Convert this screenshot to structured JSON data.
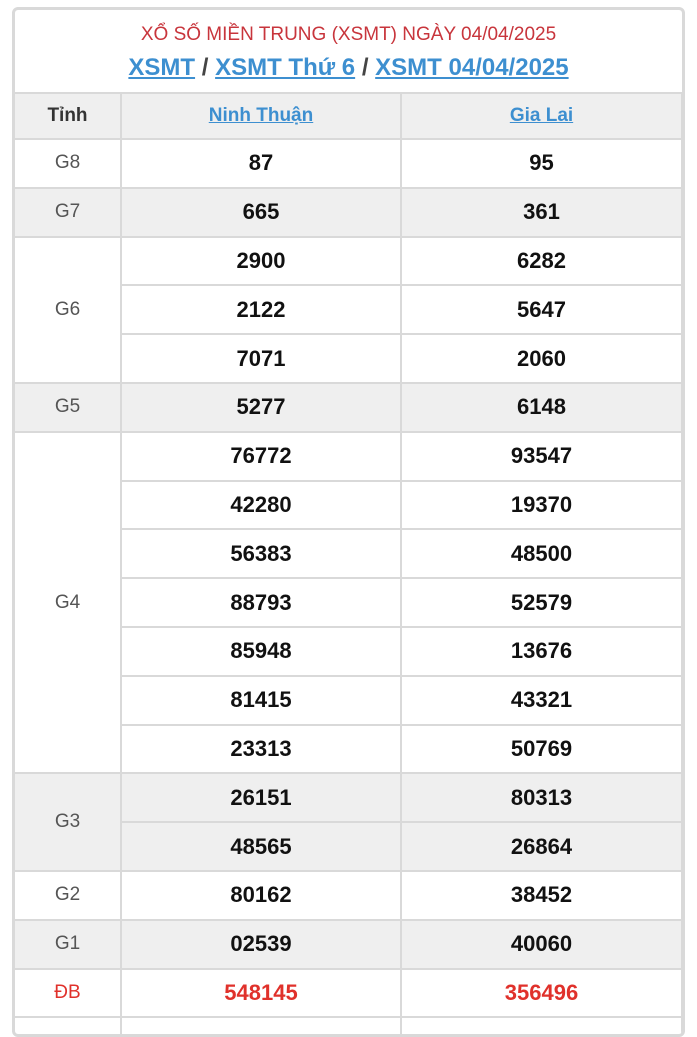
{
  "header": {
    "title": "XỔ SỐ MIỀN TRUNG (XSMT) NGÀY 04/04/2025",
    "breadcrumb": [
      "XSMT",
      "XSMT Thứ 6",
      "XSMT 04/04/2025"
    ],
    "separator": "/"
  },
  "table": {
    "col_label": "Tỉnh",
    "provinces": [
      "Ninh Thuận",
      "Gia Lai"
    ],
    "prizes": [
      {
        "name": "G8",
        "rows": [
          [
            "87",
            "95"
          ]
        ]
      },
      {
        "name": "G7",
        "rows": [
          [
            "665",
            "361"
          ]
        ]
      },
      {
        "name": "G6",
        "rows": [
          [
            "2900",
            "6282"
          ],
          [
            "2122",
            "5647"
          ],
          [
            "7071",
            "2060"
          ]
        ]
      },
      {
        "name": "G5",
        "rows": [
          [
            "5277",
            "6148"
          ]
        ]
      },
      {
        "name": "G4",
        "rows": [
          [
            "76772",
            "93547"
          ],
          [
            "42280",
            "19370"
          ],
          [
            "56383",
            "48500"
          ],
          [
            "88793",
            "52579"
          ],
          [
            "85948",
            "13676"
          ],
          [
            "81415",
            "43321"
          ],
          [
            "23313",
            "50769"
          ]
        ]
      },
      {
        "name": "G3",
        "rows": [
          [
            "26151",
            "80313"
          ],
          [
            "48565",
            "26864"
          ]
        ]
      },
      {
        "name": "G2",
        "rows": [
          [
            "80162",
            "38452"
          ]
        ]
      },
      {
        "name": "G1",
        "rows": [
          [
            "02539",
            "40060"
          ]
        ]
      },
      {
        "name": "ĐB",
        "rows": [
          [
            "548145",
            "356496"
          ]
        ]
      }
    ]
  },
  "colors": {
    "title": "#c8353c",
    "link": "#3d8fd0",
    "special": "#e0312b"
  }
}
